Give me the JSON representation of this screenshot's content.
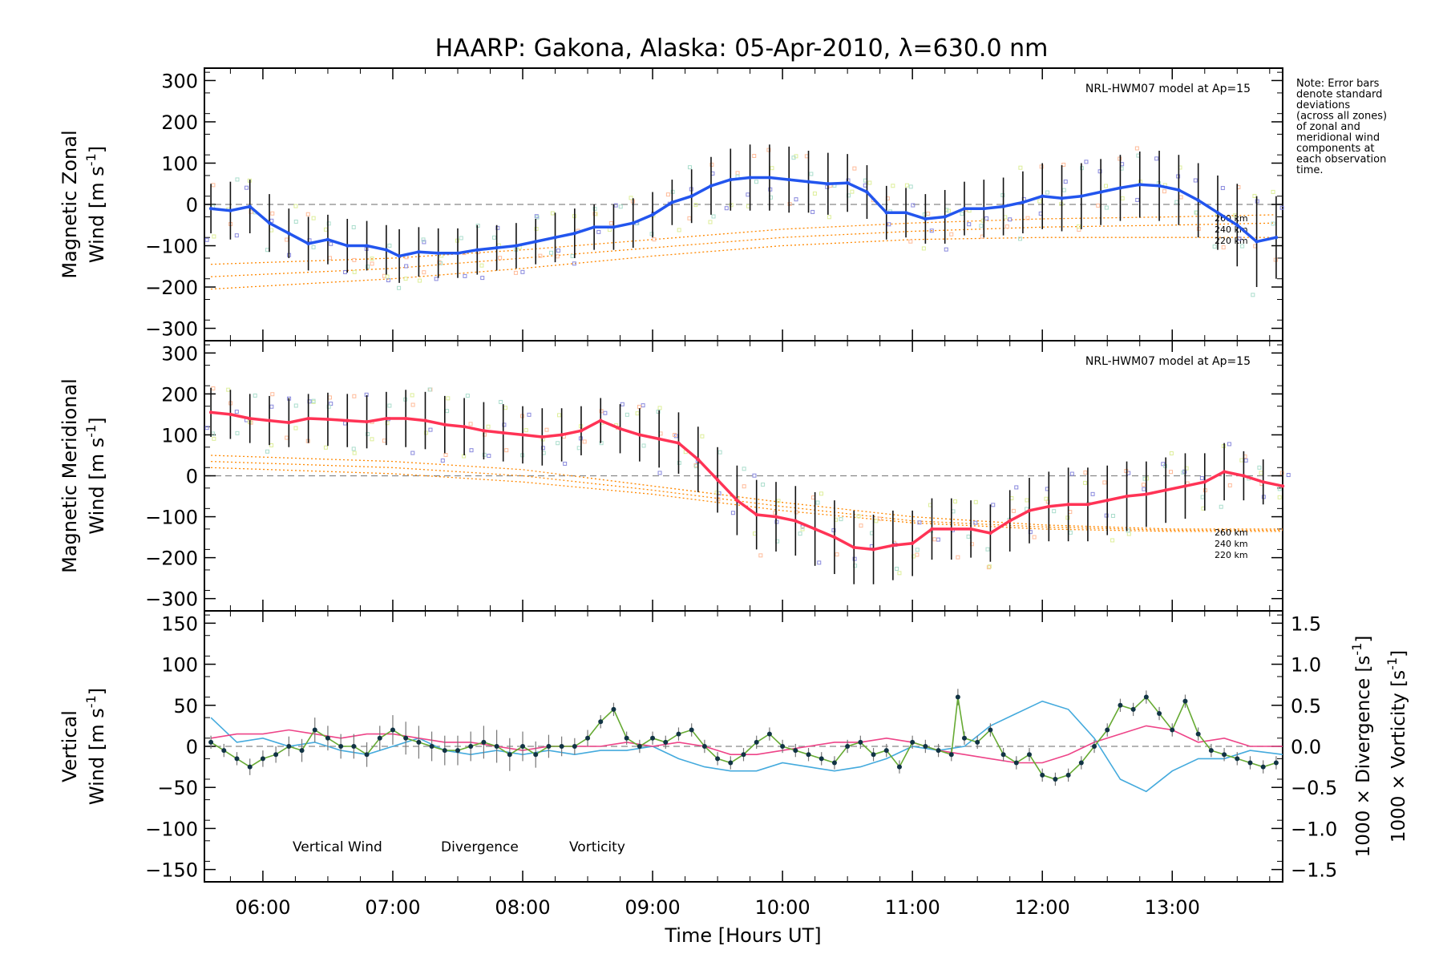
{
  "title": "HAARP: Gakona,  Alaska: 05-Apr-2010, λ=630.0 nm",
  "note": [
    "Note: Error bars",
    "denote standard",
    "deviations",
    "(across all zones)",
    "of zonal and",
    "meridional wind",
    "components at",
    "each observation",
    "time."
  ],
  "xaxis": {
    "label": "Time [Hours UT]",
    "ticks": [
      "06:00",
      "07:00",
      "08:00",
      "09:00",
      "10:00",
      "11:00",
      "12:00",
      "13:00"
    ],
    "tick_hours": [
      6,
      7,
      8,
      9,
      10,
      11,
      12,
      13
    ],
    "range": [
      5.55,
      13.85
    ]
  },
  "colors": {
    "zonal": "#2255ee",
    "meridional": "#ff3355",
    "vertical": "#66aa33",
    "divergence": "#44aadd",
    "vorticity": "#ee4488",
    "model": "#ff8800",
    "zone_points": "#8888dd",
    "errorbar": "#111111"
  },
  "chart_data": [
    {
      "type": "line",
      "panel": "zonal",
      "ylabel_line1": "Magnetic Zonal",
      "ylabel_line2": "Wind [m s",
      "ylabel_sup": "-1",
      "ylabel_close": "]",
      "ylim": [
        -330,
        330
      ],
      "yticks": [
        300,
        200,
        100,
        0,
        -100,
        -200,
        -300
      ],
      "model_label": "NRL-HWM07 model at Ap=15",
      "model_alt_labels": [
        "260 km",
        "240 km",
        "220 km"
      ],
      "series": [
        {
          "name": "zonal",
          "x": [
            5.6,
            5.75,
            5.9,
            6.05,
            6.2,
            6.35,
            6.5,
            6.65,
            6.8,
            6.95,
            7.05,
            7.2,
            7.35,
            7.5,
            7.65,
            7.8,
            7.95,
            8.1,
            8.25,
            8.4,
            8.55,
            8.7,
            8.85,
            9.0,
            9.15,
            9.3,
            9.45,
            9.6,
            9.75,
            9.9,
            10.05,
            10.2,
            10.35,
            10.5,
            10.65,
            10.8,
            10.95,
            11.1,
            11.25,
            11.4,
            11.55,
            11.7,
            11.85,
            12.0,
            12.15,
            12.3,
            12.45,
            12.6,
            12.75,
            12.9,
            13.05,
            13.2,
            13.35,
            13.5,
            13.65,
            13.8
          ],
          "y": [
            -10,
            -15,
            -5,
            -45,
            -70,
            -95,
            -85,
            -100,
            -100,
            -110,
            -125,
            -115,
            -118,
            -118,
            -110,
            -105,
            -100,
            -90,
            -80,
            -70,
            -55,
            -55,
            -45,
            -25,
            5,
            20,
            45,
            60,
            65,
            65,
            60,
            55,
            50,
            52,
            30,
            -20,
            -20,
            -35,
            -30,
            -10,
            -10,
            -5,
            5,
            20,
            15,
            20,
            30,
            40,
            48,
            45,
            35,
            10,
            -20,
            -50,
            -90,
            -80
          ],
          "errors": [
            60,
            70,
            65,
            70,
            60,
            65,
            60,
            65,
            60,
            60,
            65,
            60,
            60,
            60,
            60,
            55,
            55,
            55,
            60,
            60,
            55,
            55,
            60,
            55,
            55,
            65,
            70,
            75,
            80,
            80,
            80,
            75,
            75,
            70,
            65,
            65,
            60,
            60,
            65,
            65,
            70,
            70,
            75,
            80,
            80,
            80,
            80,
            80,
            80,
            85,
            85,
            90,
            90,
            100,
            110,
            100
          ]
        }
      ],
      "model_curves": [
        {
          "x": [
            5.6,
            7,
            8,
            9,
            10,
            11,
            12,
            13,
            13.8
          ],
          "y": [
            -145,
            -130,
            -110,
            -85,
            -60,
            -45,
            -35,
            -30,
            -25
          ]
        },
        {
          "x": [
            5.6,
            7,
            8,
            9,
            10,
            11,
            12,
            13,
            13.8
          ],
          "y": [
            -175,
            -155,
            -130,
            -105,
            -80,
            -65,
            -55,
            -50,
            -45
          ]
        },
        {
          "x": [
            5.6,
            7,
            8,
            9,
            10,
            11,
            12,
            13,
            13.8
          ],
          "y": [
            -205,
            -180,
            -155,
            -125,
            -100,
            -85,
            -80,
            -80,
            -80
          ]
        }
      ]
    },
    {
      "type": "line",
      "panel": "meridional",
      "ylabel_line1": "Magnetic Meridional",
      "ylabel_line2": "Wind [m s",
      "ylabel_sup": "-1",
      "ylabel_close": "]",
      "ylim": [
        -330,
        330
      ],
      "yticks": [
        300,
        200,
        100,
        0,
        -100,
        -200,
        -300
      ],
      "model_label": "NRL-HWM07 model at Ap=15",
      "model_alt_labels": [
        "260 km",
        "240 km",
        "220 km"
      ],
      "series": [
        {
          "name": "meridional",
          "x": [
            5.6,
            5.75,
            5.9,
            6.05,
            6.2,
            6.35,
            6.5,
            6.65,
            6.8,
            6.95,
            7.1,
            7.25,
            7.4,
            7.55,
            7.7,
            7.85,
            8.0,
            8.15,
            8.3,
            8.45,
            8.6,
            8.75,
            8.9,
            9.05,
            9.2,
            9.35,
            9.5,
            9.65,
            9.8,
            9.95,
            10.1,
            10.25,
            10.4,
            10.55,
            10.7,
            10.85,
            11.0,
            11.15,
            11.3,
            11.45,
            11.6,
            11.75,
            11.9,
            12.05,
            12.2,
            12.35,
            12.5,
            12.65,
            12.8,
            12.95,
            13.1,
            13.25,
            13.4,
            13.55,
            13.7,
            13.85
          ],
          "y": [
            155,
            150,
            140,
            135,
            130,
            140,
            138,
            135,
            132,
            140,
            140,
            135,
            125,
            120,
            110,
            105,
            100,
            95,
            100,
            110,
            135,
            115,
            100,
            90,
            80,
            40,
            -10,
            -60,
            -95,
            -100,
            -110,
            -130,
            -150,
            -175,
            -180,
            -170,
            -165,
            -130,
            -130,
            -130,
            -140,
            -110,
            -85,
            -75,
            -70,
            -70,
            -60,
            -50,
            -45,
            -35,
            -25,
            -15,
            10,
            0,
            -15,
            -25
          ],
          "errors": [
            60,
            60,
            60,
            60,
            60,
            60,
            65,
            65,
            65,
            65,
            70,
            70,
            70,
            70,
            70,
            70,
            70,
            70,
            65,
            60,
            55,
            60,
            65,
            70,
            75,
            80,
            80,
            85,
            85,
            85,
            85,
            90,
            90,
            90,
            85,
            85,
            80,
            75,
            75,
            70,
            70,
            75,
            80,
            85,
            90,
            90,
            85,
            85,
            80,
            80,
            80,
            70,
            70,
            60,
            55,
            50
          ]
        }
      ],
      "model_curves": [
        {
          "x": [
            5.6,
            7,
            8,
            9,
            10,
            11,
            12,
            13,
            13.85
          ],
          "y": [
            50,
            35,
            15,
            -25,
            -65,
            -100,
            -120,
            -130,
            -130
          ]
        },
        {
          "x": [
            5.6,
            7,
            8,
            9,
            10,
            11,
            12,
            13,
            13.85
          ],
          "y": [
            35,
            20,
            0,
            -35,
            -75,
            -110,
            -125,
            -133,
            -133
          ]
        },
        {
          "x": [
            5.6,
            7,
            8,
            9,
            10,
            11,
            12,
            13,
            13.85
          ],
          "y": [
            20,
            5,
            -15,
            -45,
            -85,
            -115,
            -130,
            -136,
            -136
          ]
        }
      ]
    },
    {
      "type": "line",
      "panel": "vertical",
      "ylabel_green_line1": "Vertical",
      "ylabel_green_line2": "Wind [m s",
      "ylabel_sup": "-1",
      "ylabel_close": "]",
      "ylim": [
        -165,
        165
      ],
      "yticks": [
        150,
        100,
        50,
        0,
        -50,
        -100,
        -150
      ],
      "y2lim": [
        -1.65,
        1.65
      ],
      "y2ticks": [
        1.5,
        1.0,
        0.5,
        0.0,
        -0.5,
        -1.0,
        -1.5
      ],
      "y2label_div": "1000 × Divergence [s",
      "y2label_vort": "1000 × Vorticity [s",
      "legend": [
        "Vertical Wind",
        "Divergence",
        "Vorticity"
      ],
      "series": [
        {
          "name": "Vertical Wind",
          "x": [
            5.6,
            5.7,
            5.8,
            5.9,
            6.0,
            6.1,
            6.2,
            6.3,
            6.4,
            6.5,
            6.6,
            6.7,
            6.8,
            6.9,
            7.0,
            7.1,
            7.2,
            7.3,
            7.4,
            7.5,
            7.6,
            7.7,
            7.8,
            7.9,
            8.0,
            8.1,
            8.2,
            8.3,
            8.4,
            8.5,
            8.6,
            8.7,
            8.8,
            8.9,
            9.0,
            9.1,
            9.2,
            9.3,
            9.4,
            9.5,
            9.6,
            9.7,
            9.8,
            9.9,
            10.0,
            10.1,
            10.2,
            10.3,
            10.4,
            10.5,
            10.6,
            10.7,
            10.8,
            10.9,
            11.0,
            11.1,
            11.2,
            11.3,
            11.35,
            11.4,
            11.5,
            11.6,
            11.7,
            11.8,
            11.9,
            12.0,
            12.1,
            12.2,
            12.3,
            12.4,
            12.5,
            12.6,
            12.7,
            12.8,
            12.9,
            13.0,
            13.1,
            13.2,
            13.3,
            13.4,
            13.5,
            13.6,
            13.7,
            13.8
          ],
          "y": [
            5,
            -5,
            -15,
            -25,
            -15,
            -10,
            0,
            -5,
            20,
            10,
            0,
            0,
            -10,
            10,
            20,
            10,
            5,
            0,
            -5,
            -5,
            0,
            5,
            0,
            -10,
            0,
            -10,
            0,
            0,
            0,
            10,
            30,
            45,
            10,
            0,
            10,
            5,
            15,
            20,
            0,
            -15,
            -20,
            -10,
            5,
            15,
            0,
            -5,
            -10,
            -15,
            -20,
            0,
            5,
            -10,
            -5,
            -25,
            5,
            0,
            -5,
            -10,
            60,
            10,
            5,
            20,
            -10,
            -20,
            -10,
            -35,
            -40,
            -35,
            -20,
            0,
            20,
            50,
            45,
            60,
            40,
            20,
            55,
            15,
            -5,
            -10,
            -15,
            -20,
            -25,
            -20
          ],
          "errors": [
            8,
            8,
            8,
            10,
            10,
            10,
            12,
            14,
            15,
            15,
            15,
            15,
            15,
            15,
            18,
            20,
            20,
            18,
            18,
            18,
            18,
            20,
            20,
            20,
            18,
            16,
            14,
            12,
            10,
            10,
            8,
            8,
            8,
            8,
            8,
            8,
            8,
            8,
            8,
            8,
            8,
            8,
            8,
            8,
            8,
            8,
            8,
            8,
            8,
            8,
            8,
            8,
            8,
            8,
            8,
            8,
            8,
            8,
            10,
            8,
            8,
            8,
            8,
            8,
            8,
            8,
            8,
            8,
            8,
            8,
            8,
            8,
            8,
            8,
            8,
            8,
            8,
            8,
            8,
            8,
            8,
            8,
            8,
            8
          ]
        },
        {
          "name": "Divergence",
          "x": [
            5.6,
            5.8,
            6.0,
            6.2,
            6.4,
            6.6,
            6.8,
            7.0,
            7.2,
            7.4,
            7.6,
            7.8,
            8.0,
            8.2,
            8.4,
            8.6,
            8.8,
            9.0,
            9.2,
            9.4,
            9.6,
            9.8,
            10.0,
            10.2,
            10.4,
            10.6,
            10.8,
            11.0,
            11.2,
            11.4,
            11.6,
            11.8,
            12.0,
            12.2,
            12.4,
            12.6,
            12.8,
            13.0,
            13.2,
            13.4,
            13.6,
            13.85
          ],
          "y": [
            0.35,
            0.05,
            0.1,
            0.0,
            0.05,
            -0.05,
            -0.1,
            0.0,
            0.1,
            -0.05,
            -0.1,
            -0.05,
            -0.1,
            -0.05,
            -0.1,
            -0.05,
            -0.05,
            0.0,
            -0.15,
            -0.25,
            -0.3,
            -0.3,
            -0.2,
            -0.25,
            -0.3,
            -0.25,
            -0.15,
            0.0,
            -0.05,
            0.0,
            0.25,
            0.4,
            0.55,
            0.45,
            0.1,
            -0.4,
            -0.55,
            -0.3,
            -0.15,
            -0.15,
            -0.05,
            -0.1
          ],
          "axis": "right"
        },
        {
          "name": "Vorticity",
          "x": [
            5.6,
            5.8,
            6.0,
            6.2,
            6.4,
            6.6,
            6.8,
            7.0,
            7.2,
            7.4,
            7.6,
            7.8,
            8.0,
            8.2,
            8.4,
            8.6,
            8.8,
            9.0,
            9.2,
            9.4,
            9.6,
            9.8,
            10.0,
            10.2,
            10.4,
            10.6,
            10.8,
            11.0,
            11.2,
            11.4,
            11.6,
            11.8,
            12.0,
            12.2,
            12.4,
            12.6,
            12.8,
            13.0,
            13.2,
            13.4,
            13.6,
            13.85
          ],
          "y": [
            0.1,
            0.15,
            0.15,
            0.2,
            0.15,
            0.1,
            0.15,
            0.15,
            0.1,
            0.05,
            0.05,
            0.0,
            -0.05,
            0.0,
            0.0,
            0.0,
            0.05,
            0.0,
            0.05,
            0.0,
            -0.1,
            -0.1,
            -0.05,
            0.0,
            0.05,
            0.05,
            0.1,
            0.05,
            -0.05,
            -0.1,
            -0.15,
            -0.2,
            -0.2,
            -0.1,
            0.05,
            0.15,
            0.25,
            0.2,
            0.05,
            0.1,
            0.0,
            0.0
          ],
          "axis": "right"
        }
      ]
    }
  ]
}
